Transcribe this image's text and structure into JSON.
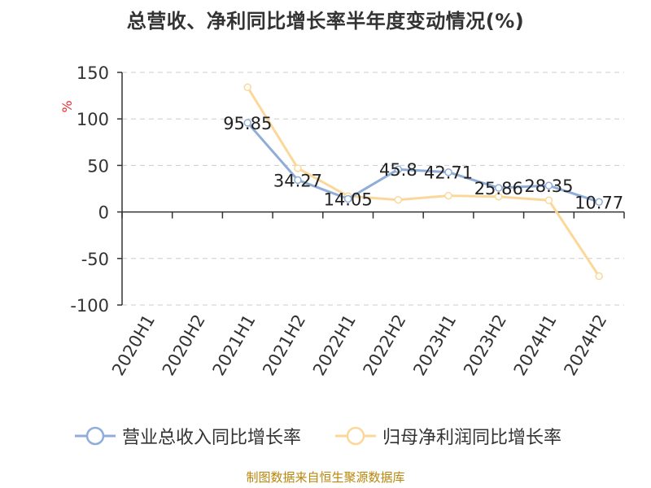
{
  "chart_data": {
    "type": "line",
    "title": "总营收、净利同比增长率半年度变动情况(%)",
    "ylabel": "%",
    "ylim": [
      -100,
      150
    ],
    "yticks": [
      150,
      100,
      50,
      0,
      -50,
      -100
    ],
    "grid": true,
    "legend_position": "bottom",
    "categories": [
      "2020H1",
      "2020H2",
      "2021H1",
      "2021H2",
      "2022H1",
      "2022H2",
      "2023H1",
      "2023H2",
      "2024H1",
      "2024H2"
    ],
    "series": [
      {
        "name": "营业总收入同比增长率",
        "color": "#8fadd8",
        "values": [
          null,
          null,
          95.85,
          34.27,
          14.05,
          45.8,
          42.71,
          25.86,
          28.35,
          10.77
        ],
        "labels": [
          null,
          null,
          "95.85",
          "34.27",
          "14.05",
          "45.8",
          "42.71",
          "25.86",
          "28.35",
          "10.77"
        ]
      },
      {
        "name": "归母净利润同比增长率",
        "color": "#fbd89a",
        "values": [
          null,
          null,
          134,
          47,
          17,
          13,
          17.5,
          16.5,
          12.5,
          -69
        ]
      }
    ]
  },
  "footer": "制图数据来自恒生聚源数据库"
}
